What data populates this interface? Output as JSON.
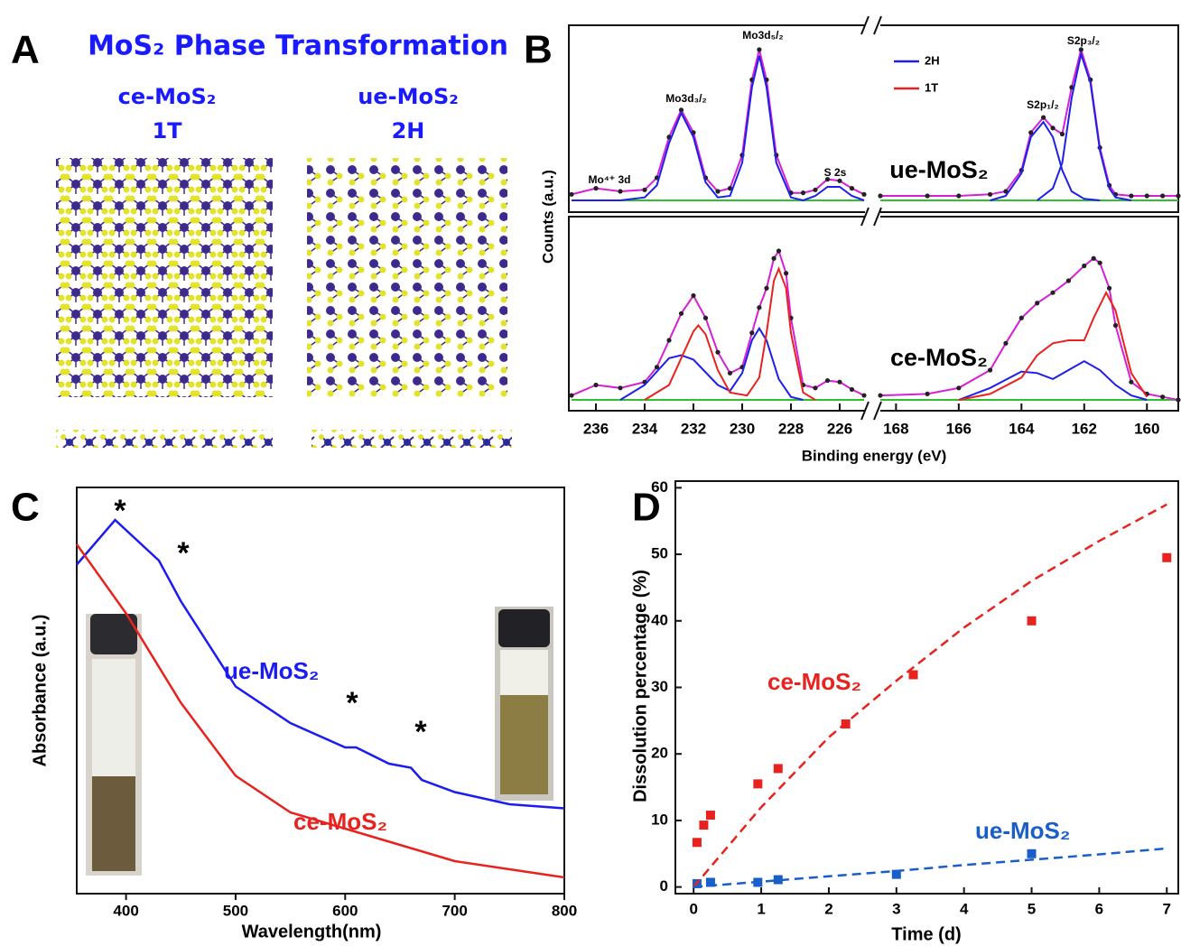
{
  "panel_labels": [
    "A",
    "B",
    "C",
    "D"
  ],
  "diagram": {
    "title": "MoS₂ Phase Transformation",
    "structures": [
      {
        "name": "ce-MoS₂",
        "phase": "1T"
      },
      {
        "name": "ue-MoS₂",
        "phase": "2H"
      }
    ]
  },
  "chart_data": [
    {
      "type": "xps",
      "xlabel": "Binding energy (eV)",
      "ylabel": "Counts (a.u.)",
      "ylim": [
        0,
        100
      ],
      "segments": [
        {
          "xlim": [
            237,
            225
          ],
          "xticks": [
            236,
            234,
            232,
            230,
            228,
            226
          ]
        },
        {
          "xlim": [
            168.5,
            159
          ],
          "xticks": [
            168,
            166,
            164,
            162,
            160
          ]
        }
      ],
      "panels": [
        {
          "label": "ue-MoS₂",
          "annotations": [
            "Mo⁴⁺ 3d",
            "Mo3d₃/₂",
            "Mo3d₅/₂",
            "S 2s",
            "S2p₁/₂",
            "S2p₃/₂"
          ],
          "series": [
            {
              "color": "#d61fd6",
              "markers": "#222",
              "x": [
                237,
                236,
                235,
                234,
                233.5,
                233,
                232.5,
                232,
                231.5,
                231,
                230.5,
                230,
                229.6,
                229.3,
                229,
                228.6,
                228,
                227.5,
                227,
                226.5,
                226,
                225.5,
                225
              ],
              "values": [
                4,
                8,
                6,
                7,
                15,
                42,
                60,
                45,
                15,
                6,
                8,
                30,
                80,
                100,
                80,
                30,
                5,
                5,
                7,
                14,
                13,
                8,
                4
              ]
            },
            {
              "color": "#d61fd6",
              "markers": "#222",
              "x": [
                168.5,
                167,
                166,
                165,
                164.5,
                164,
                163.7,
                163.3,
                163,
                162.7,
                162.4,
                162.1,
                161.8,
                161.5,
                161.2,
                161,
                160.5,
                160,
                159.5,
                159
              ],
              "values": [
                3,
                3,
                3,
                4,
                6,
                20,
                45,
                55,
                48,
                44,
                75,
                100,
                80,
                35,
                10,
                4,
                3,
                3,
                3,
                3
              ]
            },
            {
              "color": "#1f1fe8",
              "x": [
                237,
                236,
                235,
                234,
                233.5,
                233,
                232.5,
                232,
                231.5,
                231,
                230.5,
                230,
                229.6,
                229.3,
                229,
                228.6,
                228,
                227.5,
                227,
                226.5,
                226,
                225.5,
                225
              ],
              "values": [
                0,
                0,
                0,
                2,
                10,
                38,
                58,
                42,
                12,
                2,
                3,
                25,
                75,
                96,
                75,
                25,
                2,
                0,
                3,
                9,
                9,
                3,
                0
              ]
            },
            {
              "color": "#1f1fe8",
              "x": [
                165,
                164.5,
                164,
                163.7,
                163.3,
                163,
                162.7,
                162.4,
                162,
                161.5
              ],
              "values": [
                0,
                3,
                18,
                42,
                52,
                42,
                20,
                6,
                1,
                0
              ]
            },
            {
              "color": "#1f1fe8",
              "x": [
                163.5,
                163,
                162.7,
                162.4,
                162.1,
                161.8,
                161.5,
                161.2,
                161,
                160.5
              ],
              "values": [
                0,
                8,
                25,
                68,
                97,
                78,
                33,
                8,
                2,
                0
              ]
            }
          ]
        },
        {
          "label": "ce-MoS₂",
          "annotations": [],
          "series": [
            {
              "color": "#d61fd6",
              "markers": "#222",
              "x": [
                237,
                236,
                235,
                234,
                233.5,
                233,
                232.5,
                232,
                231.5,
                231,
                230.5,
                230,
                229.6,
                229.3,
                229,
                228.7,
                228.5,
                228.2,
                228,
                227.5,
                227,
                226.5,
                226,
                225.5,
                225
              ],
              "values": [
                3,
                10,
                8,
                12,
                22,
                40,
                58,
                70,
                55,
                32,
                18,
                22,
                45,
                62,
                75,
                95,
                100,
                85,
                55,
                10,
                8,
                13,
                12,
                7,
                3
              ]
            },
            {
              "color": "#d61fd6",
              "markers": "#222",
              "x": [
                168.5,
                167,
                166,
                165,
                164.5,
                164,
                163.5,
                163,
                162.5,
                162,
                161.7,
                161.5,
                161.2,
                161,
                160.5,
                160,
                159.5,
                159
              ],
              "values": [
                3,
                4,
                8,
                20,
                38,
                55,
                65,
                72,
                80,
                90,
                95,
                92,
                75,
                50,
                12,
                4,
                2,
                0
              ]
            },
            {
              "name": "2H",
              "color": "#1f1fe8",
              "x": [
                235,
                234,
                233,
                232.5,
                232,
                231,
                230.5,
                230,
                229.6,
                229.3,
                229,
                228.5,
                228,
                227.5
              ],
              "values": [
                0,
                10,
                28,
                30,
                27,
                10,
                6,
                18,
                40,
                48,
                40,
                14,
                2,
                0
              ]
            },
            {
              "name": "2H",
              "color": "#1f1fe8",
              "x": [
                166,
                165,
                164,
                163.5,
                163,
                162.5,
                162,
                161.5,
                161,
                160.5,
                160
              ],
              "values": [
                0,
                8,
                19,
                18,
                14,
                20,
                26,
                20,
                10,
                3,
                0
              ]
            },
            {
              "name": "1T",
              "color": "#e8231f",
              "x": [
                234,
                233,
                232.5,
                232,
                231.8,
                231.5,
                231,
                230.5,
                229.8,
                229.3,
                229,
                228.7,
                228.5,
                228.2,
                228,
                227.5,
                227
              ],
              "values": [
                0,
                10,
                28,
                46,
                50,
                44,
                20,
                5,
                3,
                15,
                45,
                80,
                88,
                75,
                45,
                5,
                0
              ]
            },
            {
              "name": "1T",
              "color": "#e8231f",
              "x": [
                166,
                165,
                164,
                163.5,
                163,
                162.5,
                162,
                161.7,
                161.3,
                161,
                160.5,
                160
              ],
              "values": [
                0,
                4,
                15,
                30,
                38,
                40,
                40,
                55,
                72,
                60,
                18,
                2
              ]
            }
          ]
        }
      ]
    },
    {
      "type": "line",
      "xlabel": "Wavelength(nm)",
      "ylabel": "Absorbance (a.u.)",
      "xlim": [
        355,
        800
      ],
      "xticks": [
        400,
        500,
        600,
        700,
        800
      ],
      "ylim": [
        0,
        100
      ],
      "annotations": [
        "*",
        "*",
        "*",
        "*"
      ],
      "series": [
        {
          "name": "ue-MoS₂",
          "color": "#1c1cf0",
          "x": [
            355,
            390,
            430,
            450,
            500,
            550,
            600,
            610,
            640,
            660,
            670,
            700,
            750,
            800
          ],
          "values": [
            81,
            92,
            82,
            72,
            51,
            42,
            36,
            36,
            32,
            31,
            28,
            25,
            22,
            21
          ]
        },
        {
          "name": "ce-MoS₂",
          "color": "#e8231f",
          "x": [
            355,
            400,
            450,
            500,
            550,
            600,
            650,
            700,
            750,
            800
          ],
          "values": [
            86,
            69,
            47,
            29,
            20,
            16,
            12,
            8,
            6,
            4
          ]
        }
      ]
    },
    {
      "type": "scatter",
      "xlabel": "Time (d)",
      "ylabel": "Dissolution percentage (%)",
      "xlim": [
        -0.27,
        7.17
      ],
      "xticks": [
        0,
        1,
        2,
        3,
        4,
        5,
        6,
        7
      ],
      "ylim": [
        -1,
        61
      ],
      "yticks": [
        0,
        10,
        20,
        30,
        40,
        50,
        60
      ],
      "series": [
        {
          "name": "ce-MoS₂",
          "color": "#e8231f",
          "style": "markers",
          "x": [
            0.05,
            0.15,
            0.25,
            0.95,
            1.25,
            2.25,
            3.25,
            5,
            7
          ],
          "values": [
            6.7,
            9.3,
            10.8,
            15.5,
            17.8,
            24.5,
            31.9,
            40,
            49.5
          ]
        },
        {
          "name": "ue-MoS₂",
          "color": "#1a5fc8",
          "style": "markers",
          "x": [
            0.05,
            0.25,
            0.95,
            1.25,
            3,
            5
          ],
          "values": [
            0.5,
            0.7,
            0.7,
            1.1,
            1.9,
            5
          ]
        },
        {
          "color": "#e8231f",
          "style": "dashed",
          "x": [
            0,
            1,
            2,
            3,
            4,
            5,
            6,
            7
          ],
          "values": [
            0,
            12,
            22.5,
            31,
            39,
            46,
            52,
            57.5
          ]
        },
        {
          "color": "#1a5fc8",
          "style": "dashed",
          "x": [
            0,
            1,
            2,
            3,
            4,
            5,
            6,
            7
          ],
          "values": [
            0,
            0.8,
            1.6,
            2.4,
            3.3,
            4.1,
            4.9,
            5.8
          ]
        }
      ]
    }
  ]
}
